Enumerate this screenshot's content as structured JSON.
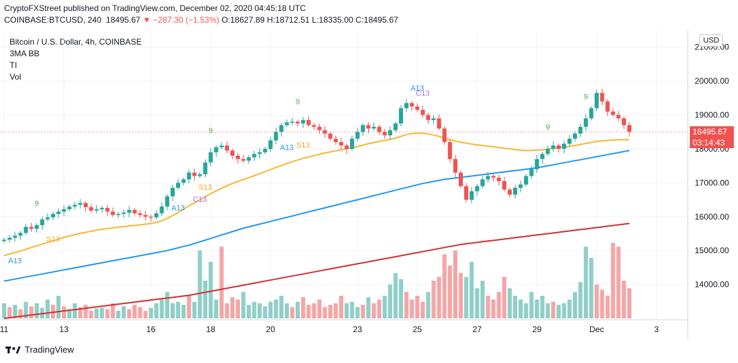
{
  "header": {
    "published_line": "CryptoFXStreet published on TradingView.com, December 02, 2020 04:45:18 UTC",
    "symbol": "COINBASE:BTCUSD, 240",
    "last": "18495.67",
    "change": "▼ −287.30 (−1.53%)",
    "ohlc": "O:18627.89 H:18712.51 L:18335.00 C:18495.67"
  },
  "legend": {
    "title": "Bitcoin / U.S. Dollar, 4h, COINBASE",
    "indicators": [
      "3MA BB",
      "TI",
      "Vol"
    ]
  },
  "currency_label": "USD",
  "price_tag": "18495.67",
  "countdown_tag": "03:14:43",
  "footer": {
    "brand": "TradingView"
  },
  "colors": {
    "up": "#26a69a",
    "down": "#ef5350",
    "ma_short": "#f7b733",
    "ma_mid": "#2196f3",
    "ma_long": "#d32f2f",
    "vol_up": "#8fcfc8",
    "vol_down": "#f4a6a6"
  },
  "chart_data": {
    "type": "candlestick",
    "y_axis": {
      "min": 13000,
      "max": 21500,
      "ticks": [
        14000,
        15000,
        16000,
        17000,
        18000,
        19000,
        20000,
        21000
      ],
      "tick_labels": [
        "14000.00",
        "15000.00",
        "16000.00",
        "17000.00",
        "18000.00",
        "19000.00",
        "20000.00",
        "21000.00"
      ]
    },
    "x_axis": {
      "labels": [
        "11",
        "13",
        "16",
        "18",
        "20",
        "23",
        "25",
        "27",
        "29",
        "Dec",
        "3"
      ],
      "label_positions": [
        0,
        11,
        27,
        38,
        49,
        65,
        76,
        87,
        98,
        109,
        120
      ]
    },
    "grid": true,
    "close": [
      15320,
      15380,
      15440,
      15520,
      15700,
      15640,
      15750,
      15920,
      15980,
      16080,
      16150,
      16220,
      16300,
      16350,
      16400,
      16280,
      16180,
      16220,
      16260,
      16150,
      16050,
      16080,
      16120,
      16200,
      16100,
      16050,
      16000,
      15980,
      16100,
      16300,
      16600,
      16850,
      17000,
      17100,
      17300,
      17200,
      17250,
      17600,
      17900,
      18050,
      18100,
      17950,
      17800,
      17700,
      17650,
      17750,
      17850,
      17900,
      18000,
      18250,
      18500,
      18700,
      18780,
      18800,
      18750,
      18850,
      18700,
      18650,
      18550,
      18450,
      18300,
      18200,
      18100,
      18000,
      18300,
      18500,
      18700,
      18600,
      18650,
      18500,
      18400,
      18550,
      18750,
      19200,
      19350,
      19250,
      19150,
      19000,
      18850,
      18900,
      18600,
      18200,
      17700,
      17300,
      16900,
      16500,
      16750,
      16900,
      17100,
      17200,
      17150,
      17050,
      16800,
      16650,
      16850,
      16950,
      17200,
      17400,
      17700,
      17850,
      18000,
      18100,
      18000,
      18150,
      18300,
      18450,
      18650,
      18900,
      19200,
      19650,
      19400,
      19100,
      19000,
      18900,
      18700,
      18500
    ],
    "ma_short": [
      14850,
      14900,
      14940,
      14990,
      15040,
      15090,
      15140,
      15190,
      15240,
      15290,
      15340,
      15390,
      15430,
      15470,
      15510,
      15540,
      15570,
      15600,
      15630,
      15650,
      15670,
      15690,
      15710,
      15730,
      15740,
      15760,
      15780,
      15800,
      15830,
      15880,
      15950,
      16030,
      16120,
      16220,
      16320,
      16410,
      16500,
      16590,
      16680,
      16760,
      16840,
      16910,
      16980,
      17040,
      17100,
      17150,
      17210,
      17270,
      17330,
      17390,
      17450,
      17510,
      17570,
      17620,
      17670,
      17720,
      17760,
      17800,
      17840,
      17880,
      17910,
      17940,
      17970,
      18000,
      18030,
      18070,
      18110,
      18150,
      18190,
      18220,
      18250,
      18280,
      18320,
      18370,
      18420,
      18450,
      18460,
      18460,
      18440,
      18410,
      18370,
      18320,
      18270,
      18230,
      18200,
      18170,
      18140,
      18120,
      18100,
      18080,
      18060,
      18040,
      18020,
      18000,
      17980,
      17960,
      17950,
      17950,
      17960,
      17970,
      17990,
      18010,
      18030,
      18050,
      18070,
      18100,
      18130,
      18160,
      18190,
      18220,
      18240,
      18250,
      18260,
      18270,
      18270,
      18270
    ],
    "ma_mid": [
      14100,
      14130,
      14160,
      14190,
      14220,
      14250,
      14280,
      14310,
      14340,
      14370,
      14400,
      14430,
      14460,
      14490,
      14520,
      14550,
      14580,
      14610,
      14640,
      14670,
      14700,
      14730,
      14760,
      14790,
      14820,
      14850,
      14880,
      14910,
      14940,
      14970,
      15000,
      15040,
      15080,
      15120,
      15160,
      15210,
      15260,
      15310,
      15360,
      15410,
      15460,
      15510,
      15560,
      15610,
      15660,
      15700,
      15740,
      15780,
      15820,
      15860,
      15900,
      15940,
      15980,
      16020,
      16060,
      16100,
      16140,
      16180,
      16220,
      16260,
      16300,
      16340,
      16380,
      16420,
      16460,
      16500,
      16540,
      16580,
      16620,
      16660,
      16700,
      16740,
      16780,
      16820,
      16860,
      16900,
      16940,
      16980,
      17010,
      17040,
      17070,
      17100,
      17120,
      17140,
      17160,
      17180,
      17200,
      17220,
      17240,
      17260,
      17280,
      17300,
      17320,
      17340,
      17360,
      17380,
      17400,
      17420,
      17440,
      17470,
      17500,
      17530,
      17560,
      17590,
      17620,
      17650,
      17680,
      17710,
      17740,
      17770,
      17800,
      17830,
      17860,
      17890,
      17920,
      17950
    ],
    "ma_long": [
      13000,
      13020,
      13040,
      13060,
      13080,
      13100,
      13120,
      13140,
      13160,
      13180,
      13200,
      13220,
      13240,
      13260,
      13280,
      13300,
      13320,
      13340,
      13360,
      13380,
      13400,
      13420,
      13440,
      13460,
      13480,
      13500,
      13520,
      13540,
      13560,
      13580,
      13600,
      13620,
      13640,
      13660,
      13680,
      13710,
      13740,
      13770,
      13800,
      13830,
      13860,
      13890,
      13920,
      13950,
      13980,
      14010,
      14040,
      14070,
      14100,
      14130,
      14160,
      14190,
      14220,
      14250,
      14280,
      14310,
      14340,
      14370,
      14400,
      14430,
      14460,
      14490,
      14520,
      14550,
      14580,
      14610,
      14640,
      14670,
      14700,
      14730,
      14760,
      14790,
      14820,
      14850,
      14880,
      14910,
      14940,
      14970,
      15000,
      15030,
      15060,
      15090,
      15120,
      15150,
      15180,
      15200,
      15220,
      15240,
      15260,
      15280,
      15300,
      15320,
      15340,
      15360,
      15380,
      15400,
      15420,
      15440,
      15460,
      15480,
      15500,
      15520,
      15540,
      15560,
      15580,
      15600,
      15620,
      15640,
      15660,
      15680,
      15700,
      15720,
      15740,
      15760,
      15780,
      15800
    ],
    "volume": [
      0.2,
      0.15,
      0.18,
      0.12,
      0.22,
      0.16,
      0.2,
      0.14,
      0.25,
      0.18,
      0.3,
      0.16,
      0.12,
      0.2,
      0.15,
      0.18,
      0.1,
      0.13,
      0.14,
      0.12,
      0.2,
      0.1,
      0.16,
      0.12,
      0.18,
      0.15,
      0.1,
      0.14,
      0.2,
      0.25,
      0.35,
      0.2,
      0.22,
      0.18,
      0.3,
      0.22,
      0.9,
      0.5,
      0.75,
      0.25,
      0.95,
      0.2,
      0.28,
      0.25,
      0.35,
      0.18,
      0.22,
      0.2,
      0.16,
      0.22,
      0.25,
      0.3,
      0.2,
      0.15,
      0.22,
      0.28,
      0.18,
      0.2,
      0.25,
      0.15,
      0.18,
      0.2,
      0.3,
      0.2,
      0.22,
      0.15,
      0.18,
      0.28,
      0.2,
      0.25,
      0.3,
      0.45,
      0.6,
      0.52,
      0.35,
      0.25,
      0.3,
      0.22,
      0.35,
      0.5,
      0.55,
      0.85,
      0.7,
      0.9,
      0.6,
      0.55,
      0.75,
      0.4,
      0.5,
      0.3,
      0.25,
      0.35,
      0.55,
      0.4,
      0.3,
      0.25,
      0.2,
      0.35,
      0.25,
      0.3,
      0.2,
      0.22,
      0.18,
      0.2,
      0.25,
      0.35,
      0.48,
      0.95,
      0.8,
      0.45,
      0.38,
      0.3,
      1.0,
      0.95,
      0.5,
      0.4
    ],
    "volume_up": [
      true,
      false,
      true,
      false,
      true,
      false,
      true,
      true,
      true,
      false,
      true,
      false,
      true,
      true,
      false,
      false,
      false,
      true,
      true,
      false,
      false,
      true,
      true,
      false,
      false,
      false,
      false,
      true,
      true,
      true,
      true,
      true,
      true,
      true,
      false,
      true,
      true,
      true,
      true,
      true,
      false,
      false,
      false,
      false,
      true,
      true,
      true,
      true,
      true,
      true,
      true,
      true,
      true,
      false,
      true,
      false,
      false,
      false,
      false,
      false,
      false,
      false,
      false,
      true,
      true,
      true,
      false,
      true,
      false,
      false,
      true,
      true,
      true,
      true,
      false,
      false,
      false,
      false,
      true,
      false,
      false,
      false,
      false,
      false,
      false,
      true,
      true,
      true,
      true,
      false,
      false,
      false,
      false,
      true,
      true,
      true,
      true,
      true,
      true,
      true,
      true,
      false,
      true,
      true,
      true,
      true,
      true,
      true,
      true,
      false,
      false,
      false,
      false,
      false,
      false,
      false
    ],
    "annotations": [
      {
        "index": 6,
        "label": "9",
        "color": "#4caf50"
      },
      {
        "index": 2,
        "label": "A13",
        "color": "#2196f3",
        "below": true
      },
      {
        "index": 9,
        "label": "S13",
        "color": "#f7a325",
        "below": true
      },
      {
        "index": 38,
        "label": "9",
        "color": "#4caf50"
      },
      {
        "index": 32,
        "label": "A13",
        "color": "#2196f3",
        "below": true
      },
      {
        "index": 36,
        "label": "C13",
        "color": "#b06fe8",
        "below": true
      },
      {
        "index": 37,
        "label": "S13",
        "color": "#f7a325",
        "below": true
      },
      {
        "index": 54,
        "label": "9",
        "color": "#4caf50"
      },
      {
        "index": 52,
        "label": "A13",
        "color": "#2196f3",
        "below": true
      },
      {
        "index": 55,
        "label": "S13",
        "color": "#f7a325",
        "below": true
      },
      {
        "index": 76,
        "label": "A13",
        "color": "#2196f3"
      },
      {
        "index": 77,
        "label": "C13",
        "color": "#b06fe8"
      },
      {
        "index": 100,
        "label": "9",
        "color": "#4caf50"
      },
      {
        "index": 107,
        "label": "9",
        "color": "#4caf50"
      }
    ]
  }
}
